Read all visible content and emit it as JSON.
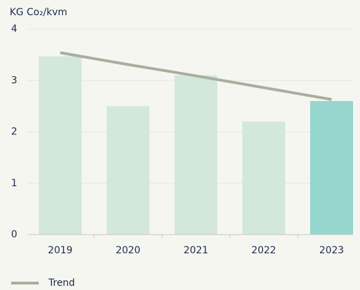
{
  "chart_data": {
    "type": "bar",
    "y_label": "KG Co₂/kvm",
    "categories": [
      "2019",
      "2020",
      "2021",
      "2022",
      "2023"
    ],
    "values": [
      3.47,
      2.5,
      3.1,
      2.2,
      2.6
    ],
    "colors": [
      "#d3e8da",
      "#d3e8da",
      "#d3e8da",
      "#d3e8da",
      "#97d6cf"
    ],
    "trend": {
      "type": "line",
      "name": "Trend",
      "color": "#a9ae9c",
      "values": [
        3.54,
        3.31,
        3.09,
        2.86,
        2.63
      ]
    },
    "ylim": [
      0,
      4
    ],
    "yticks": [
      0,
      1,
      2,
      3,
      4
    ],
    "grid": true,
    "legend": "bottom-left"
  }
}
